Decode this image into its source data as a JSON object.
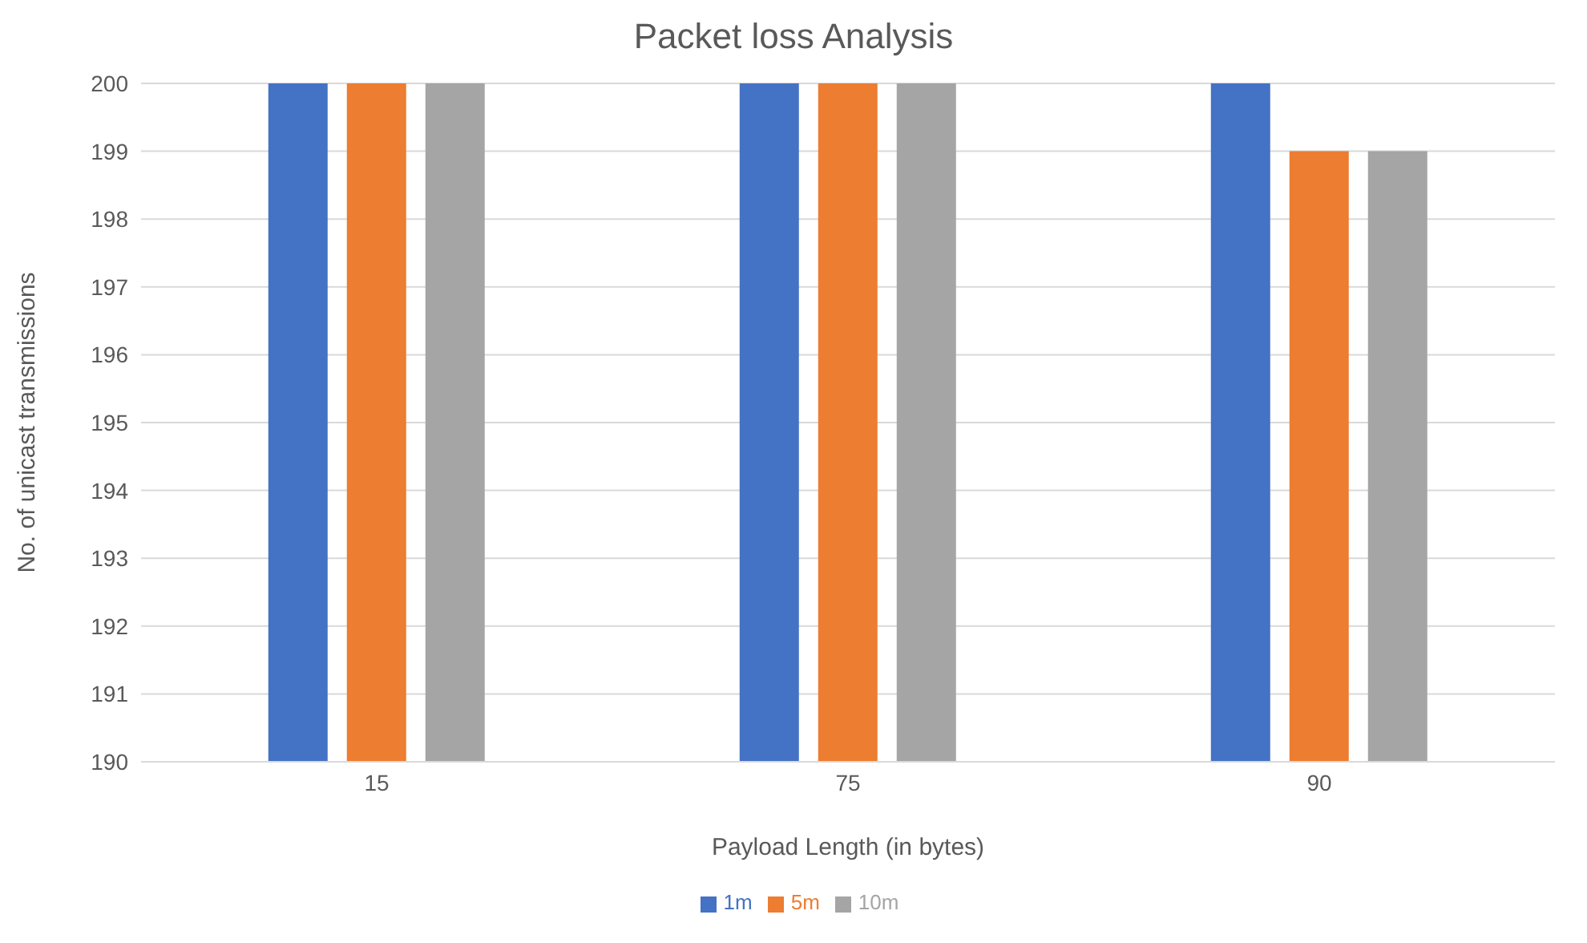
{
  "chart_data": {
    "type": "bar",
    "title": "Packet loss Analysis",
    "xlabel": "Payload Length (in bytes)",
    "ylabel": "No. of unicast transmissions",
    "categories": [
      "15",
      "75",
      "90"
    ],
    "series": [
      {
        "name": "1m",
        "color": "#4472c4",
        "values": [
          200,
          200,
          200
        ]
      },
      {
        "name": "5m",
        "color": "#ed7d31",
        "values": [
          200,
          200,
          199
        ]
      },
      {
        "name": "10m",
        "color": "#a5a5a5",
        "values": [
          200,
          200,
          199
        ]
      }
    ],
    "ylim": [
      190,
      200
    ],
    "yticks": [
      190,
      191,
      192,
      193,
      194,
      195,
      196,
      197,
      198,
      199,
      200
    ],
    "grid": "y",
    "legend": "bottom"
  }
}
